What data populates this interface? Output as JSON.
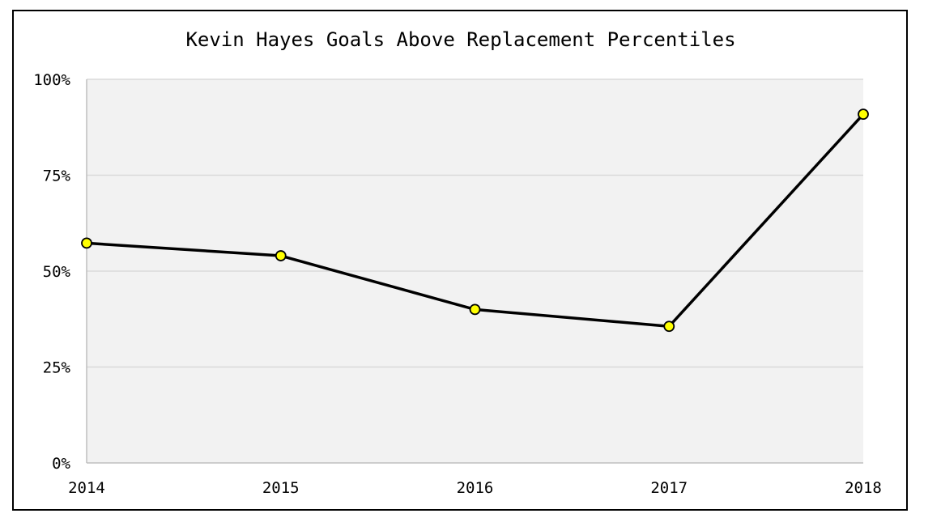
{
  "chart_data": {
    "type": "line",
    "title": "Kevin Hayes Goals Above Replacement Percentiles",
    "xlabel": "",
    "ylabel": "",
    "categories": [
      "2014",
      "2015",
      "2016",
      "2017",
      "2018"
    ],
    "series": [
      {
        "values": [
          57.3,
          54.0,
          40.0,
          35.6,
          90.9
        ]
      }
    ],
    "ylim": [
      0,
      100
    ],
    "yticks": [
      0,
      25,
      50,
      75,
      100
    ],
    "ytick_labels": [
      "0%",
      "25%",
      "50%",
      "75%",
      "100%"
    ],
    "grid": true,
    "legend": "none",
    "colors": {
      "line": "#000000",
      "marker_fill": "#ffff00",
      "marker_stroke": "#000000",
      "plot_background": "#f2f2f2",
      "gridline": "#d9d9d9"
    }
  }
}
